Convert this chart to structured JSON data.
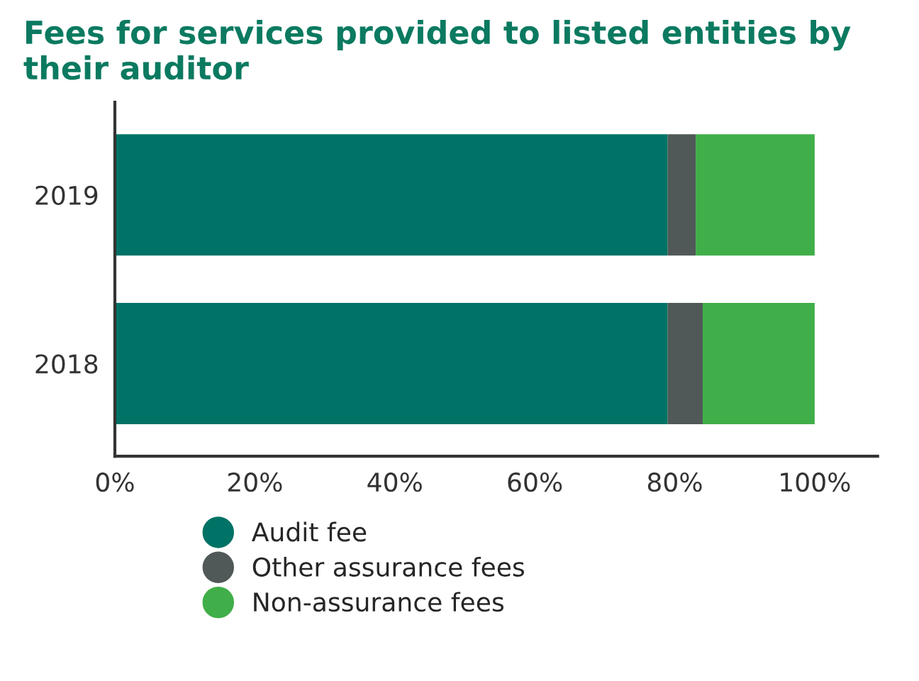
{
  "chart_data": {
    "type": "bar",
    "orientation": "horizontal",
    "stacked": true,
    "title": "Fees for services provided to listed entities by their auditor",
    "categories": [
      "2019",
      "2018"
    ],
    "series": [
      {
        "name": "Audit fee",
        "color": "#007366",
        "values": [
          79,
          79
        ]
      },
      {
        "name": "Other assurance fees",
        "color": "#505858",
        "values": [
          4,
          5
        ]
      },
      {
        "name": "Non-assurance fees",
        "color": "#40ae49",
        "values": [
          17,
          16
        ]
      }
    ],
    "xlim": [
      0,
      109
    ],
    "xticks": [
      {
        "value": 0,
        "label": "0%"
      },
      {
        "value": 20,
        "label": "20%"
      },
      {
        "value": 40,
        "label": "40%"
      },
      {
        "value": 60,
        "label": "60%"
      },
      {
        "value": 80,
        "label": "80%"
      },
      {
        "value": 100,
        "label": "100%"
      }
    ],
    "grid": false,
    "legend": "bottom"
  }
}
